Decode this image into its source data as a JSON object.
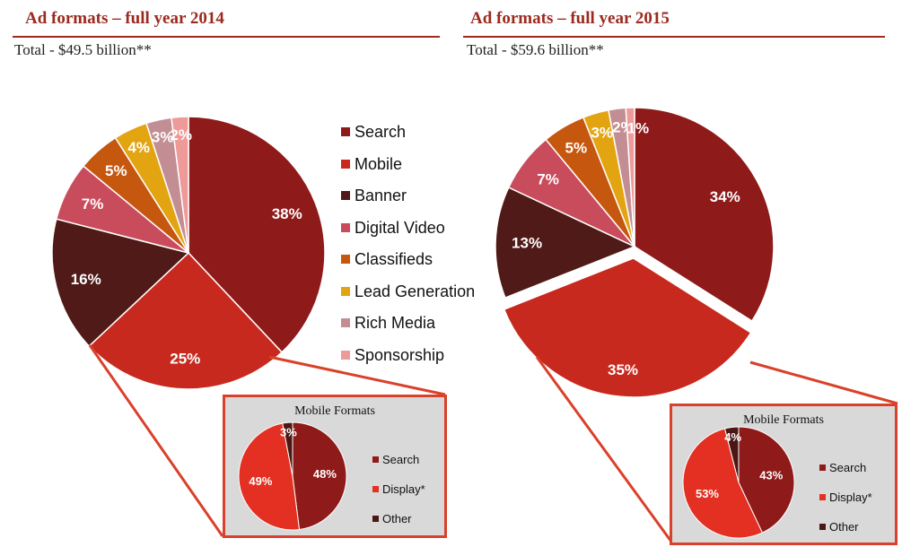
{
  "colors": {
    "Search": "#8e1a1a",
    "Mobile": "#c8291e",
    "Banner": "#4f1a17",
    "Digital Video": "#c94c5d",
    "Classifieds": "#c6570f",
    "Lead Generation": "#e3a411",
    "Rich Media": "#c28e93",
    "Sponsorship": "#ee9a98",
    "Display*": "#e33022",
    "Other": "#4a1714"
  },
  "chart_data": [
    {
      "type": "pie",
      "title": "Ad formats – full year 2014",
      "subtitle": "Total - $49.5 billion**",
      "legend_position": "right",
      "categories": [
        "Search",
        "Mobile",
        "Banner",
        "Digital Video",
        "Classifieds",
        "Lead Generation",
        "Rich Media",
        "Sponsorship"
      ],
      "values": [
        38,
        25,
        16,
        7,
        5,
        4,
        3,
        2
      ],
      "labels": [
        "38%",
        "25%",
        "16%",
        "7%",
        "5%",
        "4%",
        "3%",
        "2%"
      ]
    },
    {
      "type": "pie",
      "title": "Ad formats – full year 2015",
      "subtitle": "Total - $59.6 billion**",
      "exploded": "Mobile",
      "categories": [
        "Search",
        "Mobile",
        "Banner",
        "Digital Video",
        "Classifieds",
        "Lead Generation",
        "Rich Media",
        "Sponsorship"
      ],
      "values": [
        34,
        35,
        13,
        7,
        5,
        3,
        2,
        1
      ],
      "labels": [
        "34%",
        "35%",
        "13%",
        "7%",
        "5%",
        "3%",
        "2%",
        "1%"
      ]
    },
    {
      "type": "pie",
      "title": "Mobile Formats",
      "parent": "Ad formats – full year 2014",
      "categories": [
        "Search",
        "Display*",
        "Other"
      ],
      "values": [
        48,
        49,
        3
      ],
      "labels": [
        "48%",
        "49%",
        "3%"
      ]
    },
    {
      "type": "pie",
      "title": "Mobile Formats",
      "parent": "Ad formats – full year 2015",
      "categories": [
        "Search",
        "Display*",
        "Other"
      ],
      "values": [
        43,
        53,
        4
      ],
      "labels": [
        "43%",
        "53%",
        "4%"
      ]
    }
  ]
}
